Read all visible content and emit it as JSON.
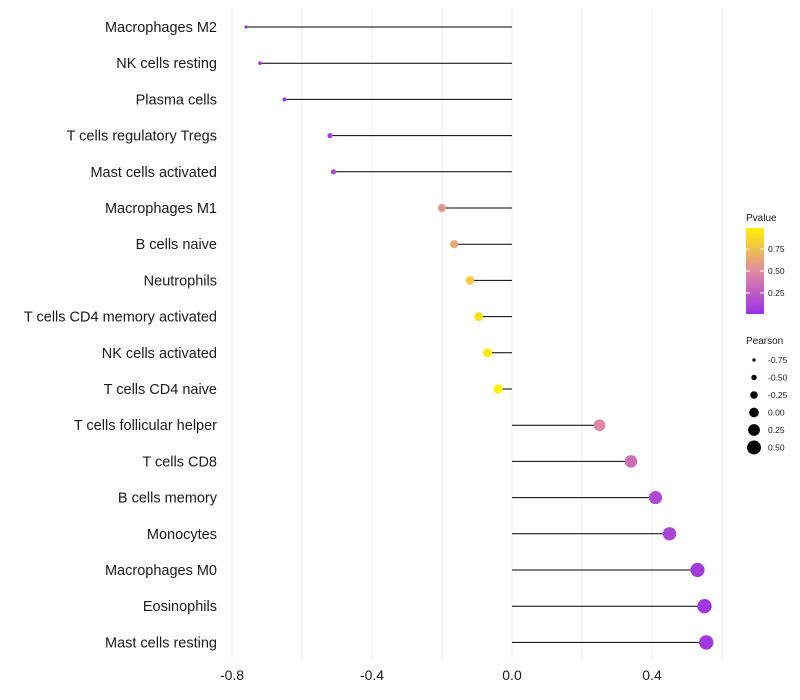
{
  "chart_data": {
    "type": "lollipop",
    "title": "",
    "xlabel": "",
    "ylabel": "",
    "xlim": [
      -0.81,
      0.63
    ],
    "x_ticks": [
      -0.8,
      -0.4,
      0.0,
      0.4
    ],
    "x_tick_labels": [
      "-0.8",
      "-0.4",
      "0.0",
      "0.4"
    ],
    "grid": true,
    "categories": [
      "Macrophages M2",
      "NK cells resting",
      "Plasma cells",
      "T cells regulatory  Tregs",
      "Mast cells activated",
      "Macrophages M1",
      "B cells naive",
      "Neutrophils",
      "T cells CD4 memory activated",
      "NK cells activated",
      "T cells CD4 naive",
      "T cells follicular helper",
      "T cells CD8",
      "B cells memory",
      "Monocytes",
      "Macrophages M0",
      "Eosinophils",
      "Mast cells resting"
    ],
    "pearson": [
      -0.76,
      -0.72,
      -0.65,
      -0.52,
      -0.51,
      -0.2,
      -0.165,
      -0.12,
      -0.095,
      -0.07,
      -0.04,
      0.25,
      0.34,
      0.41,
      0.45,
      0.53,
      0.55,
      0.555
    ],
    "pvalue": [
      0.02,
      0.03,
      0.05,
      0.1,
      0.15,
      0.55,
      0.65,
      0.8,
      0.9,
      0.95,
      0.99,
      0.5,
      0.35,
      0.15,
      0.12,
      0.07,
      0.05,
      0.04
    ],
    "legend": {
      "color": {
        "title": "Pvalue",
        "ticks": [
          0.25,
          0.5,
          0.75
        ],
        "tick_labels": [
          "0.25",
          "0.50",
          "0.75"
        ],
        "range": [
          0.01,
          0.99
        ],
        "low_color": "#9b30e6",
        "mid_color": "#e08aa0",
        "high_color": "#fff200"
      },
      "size": {
        "title": "Pearson",
        "values": [
          -0.75,
          -0.5,
          -0.25,
          0.0,
          0.25,
          0.5
        ],
        "labels": [
          "-0.75",
          "-0.50",
          "-0.25",
          "0.00",
          "0.25",
          "0.50"
        ]
      },
      "placement": "right"
    },
    "colors": {
      "segment": "#000000",
      "grid": "#ebebeb"
    }
  }
}
